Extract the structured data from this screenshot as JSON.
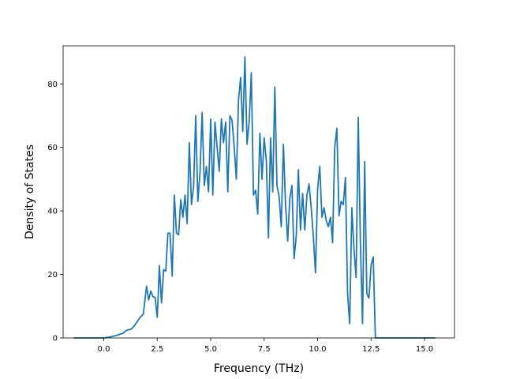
{
  "chart_data": {
    "type": "line",
    "title": "",
    "xlabel": "Frequency (THz)",
    "ylabel": "Density of States",
    "xlim": [
      -1.9,
      16.4
    ],
    "ylim": [
      0,
      92
    ],
    "grid": false,
    "legend": "none",
    "xticks": [
      0.0,
      2.5,
      5.0,
      7.5,
      10.0,
      12.5,
      15.0
    ],
    "xtick_labels": [
      "0.0",
      "2.5",
      "5.0",
      "7.5",
      "10.0",
      "12.5",
      "15.0"
    ],
    "yticks": [
      0,
      20,
      40,
      60,
      80
    ],
    "ytick_labels": [
      "0",
      "20",
      "40",
      "60",
      "80"
    ],
    "series": [
      {
        "color": "#1f77b4",
        "x": [
          -1.4,
          -1.0,
          -0.5,
          0.0,
          0.3,
          0.6,
          0.9,
          1.1,
          1.3,
          1.5,
          1.7,
          1.85,
          2.0,
          2.1,
          2.2,
          2.3,
          2.4,
          2.5,
          2.55,
          2.6,
          2.7,
          2.8,
          2.9,
          3.0,
          3.1,
          3.2,
          3.3,
          3.4,
          3.5,
          3.6,
          3.7,
          3.8,
          3.9,
          4.0,
          4.1,
          4.2,
          4.3,
          4.4,
          4.5,
          4.6,
          4.7,
          4.8,
          4.9,
          5.0,
          5.1,
          5.2,
          5.3,
          5.4,
          5.5,
          5.6,
          5.7,
          5.8,
          5.9,
          6.0,
          6.1,
          6.2,
          6.3,
          6.4,
          6.5,
          6.6,
          6.7,
          6.8,
          6.9,
          7.0,
          7.1,
          7.2,
          7.3,
          7.4,
          7.5,
          7.6,
          7.7,
          7.8,
          7.9,
          8.0,
          8.1,
          8.2,
          8.3,
          8.4,
          8.5,
          8.6,
          8.7,
          8.8,
          8.9,
          9.0,
          9.1,
          9.2,
          9.3,
          9.4,
          9.5,
          9.6,
          9.7,
          9.8,
          9.9,
          10.0,
          10.1,
          10.2,
          10.3,
          10.4,
          10.5,
          10.6,
          10.7,
          10.8,
          10.9,
          11.0,
          11.1,
          11.2,
          11.3,
          11.4,
          11.5,
          11.6,
          11.7,
          11.8,
          11.9,
          12.0,
          12.1,
          12.2,
          12.3,
          12.4,
          12.5,
          12.6,
          12.7,
          13.0,
          14.0,
          15.0,
          15.5
        ],
        "y": [
          0,
          0,
          0,
          0,
          0.3,
          0.8,
          1.5,
          2.5,
          2.8,
          4.5,
          6.5,
          7.5,
          16.3,
          12.0,
          14.8,
          13.0,
          12.8,
          6.5,
          14.0,
          22.8,
          11.0,
          21.5,
          21.0,
          33.0,
          33.0,
          19.5,
          45.0,
          33.0,
          32.5,
          43.5,
          38.0,
          45.0,
          36.0,
          61.5,
          42.0,
          47.5,
          70.0,
          43.0,
          52.0,
          71.0,
          48.0,
          54.0,
          46.0,
          69.0,
          45.0,
          68.0,
          60.0,
          52.5,
          69.0,
          61.5,
          68.0,
          46.0,
          70.0,
          68.5,
          60.0,
          50.0,
          75.0,
          82.0,
          65.0,
          88.5,
          61.0,
          68.0,
          83.5,
          45.0,
          46.5,
          39.0,
          64.5,
          50.0,
          63.0,
          56.0,
          31.5,
          63.0,
          46.0,
          79.0,
          48.0,
          44.5,
          35.0,
          61.0,
          42.0,
          30.5,
          44.0,
          48.0,
          25.0,
          32.0,
          53.0,
          34.0,
          45.5,
          34.0,
          45.0,
          48.5,
          41.0,
          32.0,
          20.5,
          47.0,
          54.0,
          38.0,
          41.0,
          37.0,
          35.0,
          38.0,
          30.0,
          60.0,
          66.0,
          38.5,
          43.0,
          42.0,
          50.5,
          14.0,
          4.5,
          41.0,
          28.0,
          19.0,
          69.5,
          30.0,
          4.5,
          55.5,
          14.0,
          12.5,
          23.0,
          25.5,
          0,
          0,
          0,
          0,
          0
        ]
      }
    ]
  }
}
